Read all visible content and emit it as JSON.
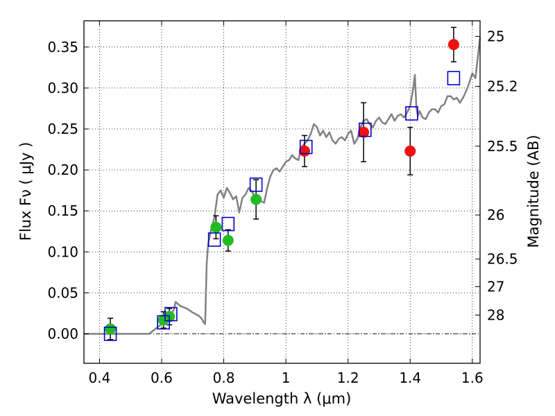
{
  "chart_data": {
    "type": "scatter",
    "xlabel": "Wavelength  λ (μm)",
    "ylabel": "Flux  Fν  ( μJy )",
    "ylabel_right": "Magnitude (AB)",
    "xlim": [
      0.35,
      1.625
    ],
    "ylim": [
      -0.036,
      0.382
    ],
    "grid": true,
    "x_ticks": [
      0.4,
      0.6,
      0.8,
      1.0,
      1.2,
      1.4,
      1.6
    ],
    "x_tick_labels": [
      "0.4",
      "0.6",
      "0.8",
      "1",
      "1.2",
      "1.4",
      "1.6"
    ],
    "y_ticks": [
      0.0,
      0.05,
      0.1,
      0.15,
      0.2,
      0.25,
      0.3,
      0.35
    ],
    "y_tick_labels": [
      "0.00",
      "0.05",
      "0.10",
      "0.15",
      "0.20",
      "0.25",
      "0.30",
      "0.35"
    ],
    "right_ticks": [
      {
        "label": "25",
        "flux": 0.363
      },
      {
        "label": "25.2",
        "flux": 0.302
      },
      {
        "label": "25.5",
        "flux": 0.229
      },
      {
        "label": "26",
        "flux": 0.145
      },
      {
        "label": "26.5",
        "flux": 0.0912
      },
      {
        "label": "27",
        "flux": 0.0575
      },
      {
        "label": "28",
        "flux": 0.0229
      }
    ],
    "model_sed": {
      "color": "#808080",
      "x": [
        0.35,
        0.56,
        0.58,
        0.6,
        0.62,
        0.63,
        0.64,
        0.645,
        0.66,
        0.68,
        0.7,
        0.72,
        0.73,
        0.735,
        0.74,
        0.745,
        0.75,
        0.76,
        0.77,
        0.78,
        0.79,
        0.8,
        0.81,
        0.82,
        0.83,
        0.84,
        0.85,
        0.86,
        0.87,
        0.88,
        0.89,
        0.9,
        0.91,
        0.92,
        0.93,
        0.94,
        0.95,
        0.96,
        0.97,
        0.98,
        0.99,
        1.0,
        1.01,
        1.02,
        1.03,
        1.04,
        1.05,
        1.06,
        1.07,
        1.08,
        1.09,
        1.1,
        1.11,
        1.12,
        1.13,
        1.14,
        1.15,
        1.16,
        1.17,
        1.18,
        1.19,
        1.2,
        1.21,
        1.22,
        1.23,
        1.24,
        1.25,
        1.26,
        1.27,
        1.28,
        1.29,
        1.3,
        1.31,
        1.32,
        1.33,
        1.34,
        1.35,
        1.36,
        1.37,
        1.38,
        1.39,
        1.4,
        1.41,
        1.415,
        1.42,
        1.425,
        1.43,
        1.44,
        1.45,
        1.46,
        1.47,
        1.48,
        1.49,
        1.5,
        1.51,
        1.52,
        1.53,
        1.54,
        1.55,
        1.56,
        1.57,
        1.58,
        1.59,
        1.6,
        1.61,
        1.625
      ],
      "y": [
        0.0,
        0.0,
        0.006,
        0.012,
        0.018,
        0.024,
        0.03,
        0.039,
        0.034,
        0.031,
        0.026,
        0.022,
        0.018,
        0.014,
        0.012,
        0.085,
        0.11,
        0.128,
        0.142,
        0.17,
        0.175,
        0.166,
        0.178,
        0.172,
        0.164,
        0.168,
        0.148,
        0.166,
        0.17,
        0.178,
        0.174,
        0.168,
        0.166,
        0.162,
        0.16,
        0.178,
        0.192,
        0.2,
        0.202,
        0.198,
        0.204,
        0.21,
        0.212,
        0.218,
        0.214,
        0.212,
        0.228,
        0.232,
        0.236,
        0.244,
        0.256,
        0.252,
        0.242,
        0.248,
        0.24,
        0.246,
        0.236,
        0.232,
        0.238,
        0.24,
        0.236,
        0.244,
        0.248,
        0.232,
        0.238,
        0.252,
        0.26,
        0.262,
        0.256,
        0.252,
        0.26,
        0.264,
        0.258,
        0.256,
        0.262,
        0.268,
        0.26,
        0.266,
        0.268,
        0.264,
        0.27,
        0.278,
        0.3,
        0.316,
        0.276,
        0.266,
        0.272,
        0.264,
        0.262,
        0.27,
        0.274,
        0.274,
        0.27,
        0.278,
        0.28,
        0.29,
        0.29,
        0.286,
        0.288,
        0.282,
        0.288,
        0.296,
        0.306,
        0.318,
        0.312,
        0.362
      ]
    },
    "series": [
      {
        "marker": "circle",
        "color": "#22bb22",
        "points": [
          {
            "x": 0.435,
            "y": 0.006,
            "err": 0.013
          },
          {
            "x": 0.606,
            "y": 0.017,
            "err": 0.01
          },
          {
            "x": 0.625,
            "y": 0.021,
            "err": 0.01
          },
          {
            "x": 0.775,
            "y": 0.13,
            "err": 0.014
          },
          {
            "x": 0.814,
            "y": 0.114,
            "err": 0.013
          },
          {
            "x": 0.904,
            "y": 0.164,
            "err": 0.024
          }
        ]
      },
      {
        "marker": "circle",
        "color": "#ee1111",
        "points": [
          {
            "x": 1.06,
            "y": 0.223,
            "err": 0.019
          },
          {
            "x": 1.25,
            "y": 0.246,
            "err": 0.036
          },
          {
            "x": 1.4,
            "y": 0.223,
            "err": 0.029
          },
          {
            "x": 1.54,
            "y": 0.353,
            "err": 0.021
          }
        ]
      },
      {
        "marker": "square",
        "color": "#0000cc",
        "points": [
          {
            "x": 0.435,
            "y": 0.0
          },
          {
            "x": 0.606,
            "y": 0.014
          },
          {
            "x": 0.63,
            "y": 0.024
          },
          {
            "x": 0.77,
            "y": 0.115
          },
          {
            "x": 0.814,
            "y": 0.134
          },
          {
            "x": 0.904,
            "y": 0.182
          },
          {
            "x": 1.065,
            "y": 0.228
          },
          {
            "x": 1.255,
            "y": 0.249
          },
          {
            "x": 1.405,
            "y": 0.269
          },
          {
            "x": 1.54,
            "y": 0.312
          }
        ]
      }
    ]
  }
}
